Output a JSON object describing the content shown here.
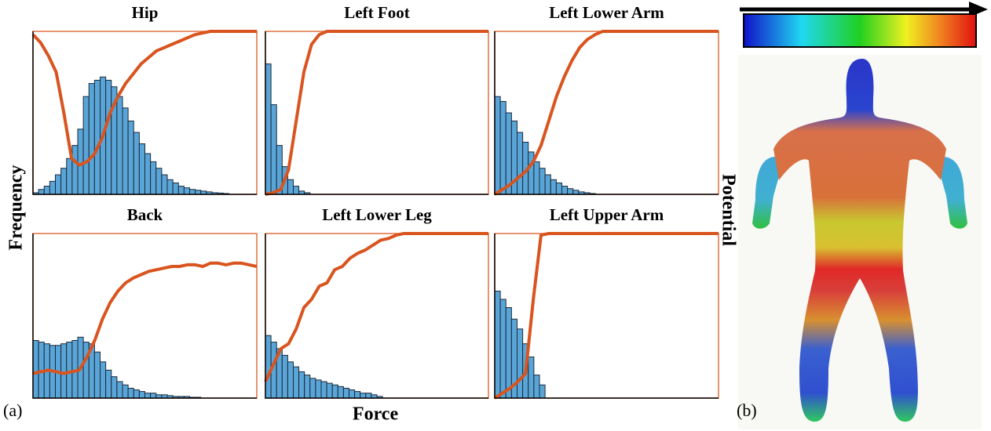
{
  "figure": {
    "ylabel": "Frequency",
    "xlabel": "Force",
    "y2label": "Potential",
    "panel_a": "(a)",
    "panel_b": "(b)"
  },
  "chart_data": [
    {
      "type": "combo",
      "title": "Hip",
      "xlim": [
        0,
        40
      ],
      "ylim": [
        0,
        1
      ],
      "series": [
        {
          "type": "bar",
          "color": "#5aa5d8",
          "values": [
            0.01,
            0.03,
            0.05,
            0.08,
            0.12,
            0.16,
            0.22,
            0.3,
            0.4,
            0.6,
            0.68,
            0.7,
            0.72,
            0.7,
            0.66,
            0.6,
            0.53,
            0.45,
            0.38,
            0.31,
            0.25,
            0.2,
            0.16,
            0.12,
            0.09,
            0.07,
            0.05,
            0.04,
            0.03,
            0.025,
            0.02,
            0.015,
            0.01,
            0.008,
            0.005
          ]
        },
        {
          "type": "line",
          "color": "#d9541e",
          "values": [
            0.98,
            0.93,
            0.85,
            0.75,
            0.5,
            0.22,
            0.18,
            0.2,
            0.25,
            0.35,
            0.5,
            0.6,
            0.68,
            0.74,
            0.8,
            0.84,
            0.88,
            0.9,
            0.92,
            0.94,
            0.96,
            0.98,
            0.99,
            1,
            1,
            1,
            1,
            1,
            1,
            1
          ]
        }
      ]
    },
    {
      "type": "combo",
      "title": "Left Foot",
      "xlim": [
        0,
        40
      ],
      "ylim": [
        0,
        1
      ],
      "series": [
        {
          "type": "bar",
          "color": "#5aa5d8",
          "values": [
            0.8,
            0.55,
            0.3,
            0.17,
            0.09,
            0.05,
            0.02,
            0.01
          ]
        },
        {
          "type": "line",
          "color": "#d9541e",
          "values": [
            0,
            0.01,
            0.03,
            0.15,
            0.45,
            0.75,
            0.92,
            0.98,
            1,
            1,
            1,
            1,
            1,
            1,
            1,
            1,
            1,
            1,
            1,
            1,
            1,
            1,
            1,
            1,
            1,
            1,
            1,
            1,
            1,
            1
          ]
        }
      ]
    },
    {
      "type": "combo",
      "title": "Left Lower Arm",
      "xlim": [
        0,
        40
      ],
      "ylim": [
        0,
        1
      ],
      "series": [
        {
          "type": "bar",
          "color": "#5aa5d8",
          "values": [
            0.6,
            0.57,
            0.5,
            0.45,
            0.38,
            0.32,
            0.26,
            0.2,
            0.16,
            0.12,
            0.09,
            0.07,
            0.05,
            0.035,
            0.025,
            0.015,
            0.01,
            0.005
          ]
        },
        {
          "type": "line",
          "color": "#d9541e",
          "values": [
            0,
            0.03,
            0.06,
            0.1,
            0.14,
            0.2,
            0.3,
            0.45,
            0.6,
            0.72,
            0.82,
            0.9,
            0.95,
            0.98,
            1,
            1,
            1,
            1,
            1,
            1,
            1,
            1,
            1,
            1,
            1,
            1,
            1,
            1,
            1,
            1
          ]
        }
      ]
    },
    {
      "type": "combo",
      "title": "Back",
      "xlim": [
        0,
        40
      ],
      "ylim": [
        0,
        1
      ],
      "series": [
        {
          "type": "bar",
          "color": "#5aa5d8",
          "values": [
            0.35,
            0.34,
            0.33,
            0.32,
            0.32,
            0.33,
            0.34,
            0.35,
            0.37,
            0.34,
            0.33,
            0.28,
            0.22,
            0.17,
            0.13,
            0.1,
            0.08,
            0.06,
            0.05,
            0.04,
            0.03,
            0.03,
            0.02,
            0.02,
            0.015,
            0.01,
            0.01,
            0.01,
            0.005,
            0.005
          ]
        },
        {
          "type": "line",
          "color": "#d9541e",
          "values": [
            0.15,
            0.16,
            0.17,
            0.16,
            0.15,
            0.16,
            0.17,
            0.25,
            0.35,
            0.48,
            0.58,
            0.65,
            0.7,
            0.73,
            0.75,
            0.77,
            0.78,
            0.79,
            0.8,
            0.8,
            0.81,
            0.81,
            0.8,
            0.82,
            0.82,
            0.81,
            0.82,
            0.82,
            0.81,
            0.8
          ]
        }
      ]
    },
    {
      "type": "combo",
      "title": "Left Lower Leg",
      "xlim": [
        0,
        40
      ],
      "ylim": [
        0,
        1
      ],
      "series": [
        {
          "type": "bar",
          "color": "#5aa5d8",
          "values": [
            0.38,
            0.34,
            0.3,
            0.26,
            0.22,
            0.19,
            0.16,
            0.14,
            0.12,
            0.11,
            0.1,
            0.09,
            0.08,
            0.07,
            0.06,
            0.05,
            0.04,
            0.03,
            0.03,
            0.02,
            0.01
          ]
        },
        {
          "type": "line",
          "color": "#d9541e",
          "values": [
            0.1,
            0.2,
            0.3,
            0.33,
            0.42,
            0.55,
            0.6,
            0.68,
            0.7,
            0.78,
            0.8,
            0.85,
            0.88,
            0.9,
            0.93,
            0.96,
            0.97,
            0.99,
            1,
            1,
            1,
            1,
            1,
            1,
            1,
            1,
            1,
            1,
            1,
            1
          ]
        }
      ]
    },
    {
      "type": "combo",
      "title": "Left Upper Arm",
      "xlim": [
        0,
        40
      ],
      "ylim": [
        0,
        1
      ],
      "series": [
        {
          "type": "bar",
          "color": "#5aa5d8",
          "values": [
            0.65,
            0.6,
            0.55,
            0.48,
            0.42,
            0.33,
            0.25,
            0.14,
            0.08
          ]
        },
        {
          "type": "line",
          "color": "#d9541e",
          "values": [
            0,
            0.03,
            0.06,
            0.1,
            0.15,
            0.6,
            0.99,
            1,
            1,
            1,
            1,
            1,
            1,
            1,
            1,
            1,
            1,
            1,
            1,
            1,
            1,
            1,
            1,
            1,
            1,
            1,
            1,
            1,
            1,
            1
          ]
        }
      ]
    }
  ]
}
